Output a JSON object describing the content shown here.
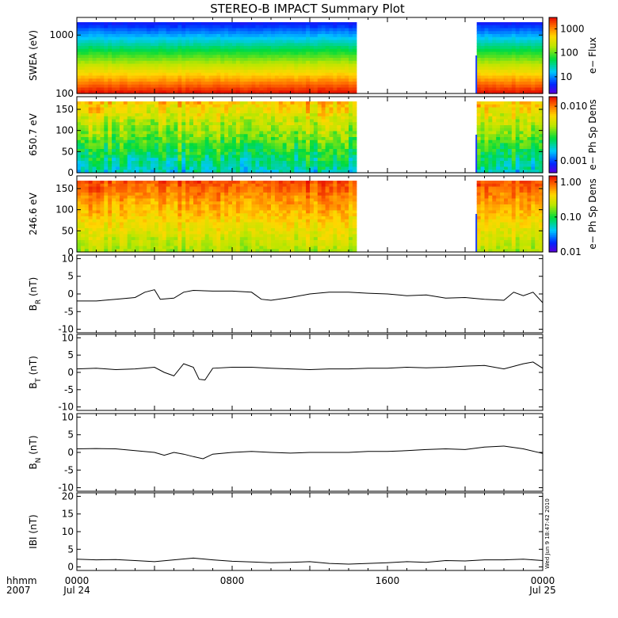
{
  "title": "STEREO-B IMPACT Summary Plot",
  "stamp": "Wed Jun  9 18:47:42 2010",
  "time_axis": {
    "row1": "hhmm",
    "row2": "2007",
    "ticks": [
      {
        "label": "0000",
        "sub": "Jul 24",
        "hour": 0
      },
      {
        "label": "0800",
        "sub": "",
        "hour": 8
      },
      {
        "label": "1600",
        "sub": "",
        "hour": 16
      },
      {
        "label": "0000",
        "sub": "Jul 25",
        "hour": 24
      }
    ],
    "range_hours": [
      0,
      24
    ]
  },
  "data_gap_hours": [
    14.45,
    20.7
  ],
  "chart_data": [
    {
      "type": "heatmap",
      "name": "swea",
      "ylabel": "SWEA (eV)",
      "yscale": "log",
      "ylim": [
        100,
        2000
      ],
      "yticks": [
        {
          "v": 100,
          "t": "100"
        },
        {
          "v": 1000,
          "t": "1000"
        }
      ],
      "cbar_label": "e− Flux",
      "cbar_scale": "log",
      "cbar_range": [
        2,
        3000
      ],
      "cbar_ticks": [
        {
          "v": 10,
          "t": "10"
        },
        {
          "v": 100,
          "t": "100"
        },
        {
          "v": 1000,
          "t": "1000"
        }
      ],
      "profile": "energy"
    },
    {
      "type": "heatmap",
      "name": "pad650",
      "ylabel": "650.7 eV",
      "yscale": "linear",
      "ylim": [
        0,
        180
      ],
      "yticks": [
        {
          "v": 0,
          "t": "0"
        },
        {
          "v": 50,
          "t": "50"
        },
        {
          "v": 100,
          "t": "100"
        },
        {
          "v": 150,
          "t": "150"
        }
      ],
      "cbar_label": "e− Ph Sp Dens",
      "cbar_scale": "log",
      "cbar_range": [
        0.0006,
        0.015
      ],
      "cbar_ticks": [
        {
          "v": 0.001,
          "t": "0.001"
        },
        {
          "v": 0.01,
          "t": "0.010"
        }
      ],
      "profile": "pad_hi"
    },
    {
      "type": "heatmap",
      "name": "pad246",
      "ylabel": "246.6 eV",
      "yscale": "linear",
      "ylim": [
        0,
        180
      ],
      "yticks": [
        {
          "v": 0,
          "t": "0"
        },
        {
          "v": 50,
          "t": "50"
        },
        {
          "v": 100,
          "t": "100"
        },
        {
          "v": 150,
          "t": "150"
        }
      ],
      "cbar_label": "e− Ph Sp Dens",
      "cbar_scale": "log",
      "cbar_range": [
        0.01,
        1.5
      ],
      "cbar_ticks": [
        {
          "v": 0.01,
          "t": "0.01"
        },
        {
          "v": 0.1,
          "t": "0.10"
        },
        {
          "v": 1.0,
          "t": "1.00"
        }
      ],
      "profile": "pad_lo"
    },
    {
      "type": "line",
      "name": "br",
      "ylabel": "B",
      "ysub": "R",
      "yunit": "(nT)",
      "ylim": [
        -11,
        11
      ],
      "yticks": [
        -10,
        -5,
        0,
        5,
        10
      ],
      "x": [
        0,
        1,
        2,
        3,
        3.5,
        4,
        4.3,
        5,
        5.5,
        6,
        7,
        8,
        9,
        9.5,
        10,
        11,
        12,
        13,
        14,
        15,
        16,
        17,
        18,
        19,
        20,
        21,
        22,
        22.5,
        23,
        23.5,
        24
      ],
      "y": [
        -2,
        -2,
        -1.5,
        -1,
        0.5,
        1.2,
        -1.5,
        -1.2,
        0.5,
        1,
        0.8,
        0.8,
        0.5,
        -1.5,
        -1.8,
        -1,
        0,
        0.5,
        0.5,
        0.2,
        0,
        -0.5,
        -0.3,
        -1.2,
        -1,
        -1.5,
        -1.8,
        0.5,
        -0.5,
        0.5,
        -2.5
      ]
    },
    {
      "type": "line",
      "name": "bt",
      "ylabel": "B",
      "ysub": "T",
      "yunit": "(nT)",
      "ylim": [
        -11,
        11
      ],
      "yticks": [
        -10,
        -5,
        0,
        5,
        10
      ],
      "x": [
        0,
        1,
        2,
        3,
        4,
        4.5,
        5,
        5.5,
        6,
        6.3,
        6.6,
        7,
        8,
        9,
        10,
        11,
        12,
        13,
        14,
        15,
        16,
        17,
        18,
        19,
        20,
        21,
        22,
        23,
        23.5,
        24
      ],
      "y": [
        1,
        1.2,
        0.8,
        1,
        1.5,
        0,
        -1,
        2.5,
        1.5,
        -2,
        -2.2,
        1.2,
        1.5,
        1.5,
        1.2,
        1,
        0.8,
        1,
        1,
        1.2,
        1.2,
        1.5,
        1.3,
        1.5,
        1.8,
        2,
        1,
        2.5,
        3,
        1.2
      ]
    },
    {
      "type": "line",
      "name": "bn",
      "ylabel": "B",
      "ysub": "N",
      "yunit": "(nT)",
      "ylim": [
        -11,
        11
      ],
      "yticks": [
        -10,
        -5,
        0,
        5,
        10
      ],
      "x": [
        0,
        1,
        2,
        3,
        4,
        4.5,
        5,
        5.5,
        6,
        6.5,
        7,
        8,
        9,
        10,
        11,
        12,
        13,
        14,
        15,
        16,
        17,
        18,
        19,
        20,
        21,
        22,
        23,
        24
      ],
      "y": [
        1,
        1.1,
        1,
        0.5,
        0,
        -0.8,
        0,
        -0.5,
        -1.2,
        -1.8,
        -0.5,
        0,
        0.3,
        0,
        -0.2,
        0,
        0,
        0,
        0.3,
        0.3,
        0.5,
        0.8,
        1,
        0.8,
        1.5,
        1.8,
        1,
        -0.3
      ]
    },
    {
      "type": "line",
      "name": "bmag",
      "ylabel": "IBI",
      "ysub": "",
      "yunit": "(nT)",
      "ylim": [
        -1,
        21
      ],
      "yticks": [
        0,
        5,
        10,
        15,
        20
      ],
      "x": [
        0,
        1,
        2,
        3,
        4,
        5,
        6,
        7,
        8,
        9,
        10,
        11,
        12,
        13,
        14,
        15,
        16,
        17,
        18,
        19,
        20,
        21,
        22,
        23,
        24
      ],
      "y": [
        2.2,
        2,
        2.1,
        1.8,
        1.5,
        2,
        2.5,
        2,
        1.6,
        1.4,
        1.2,
        1.3,
        1.5,
        1,
        0.8,
        1,
        1.2,
        1.5,
        1.3,
        1.8,
        1.7,
        2,
        2,
        2.2,
        1.8
      ]
    }
  ]
}
